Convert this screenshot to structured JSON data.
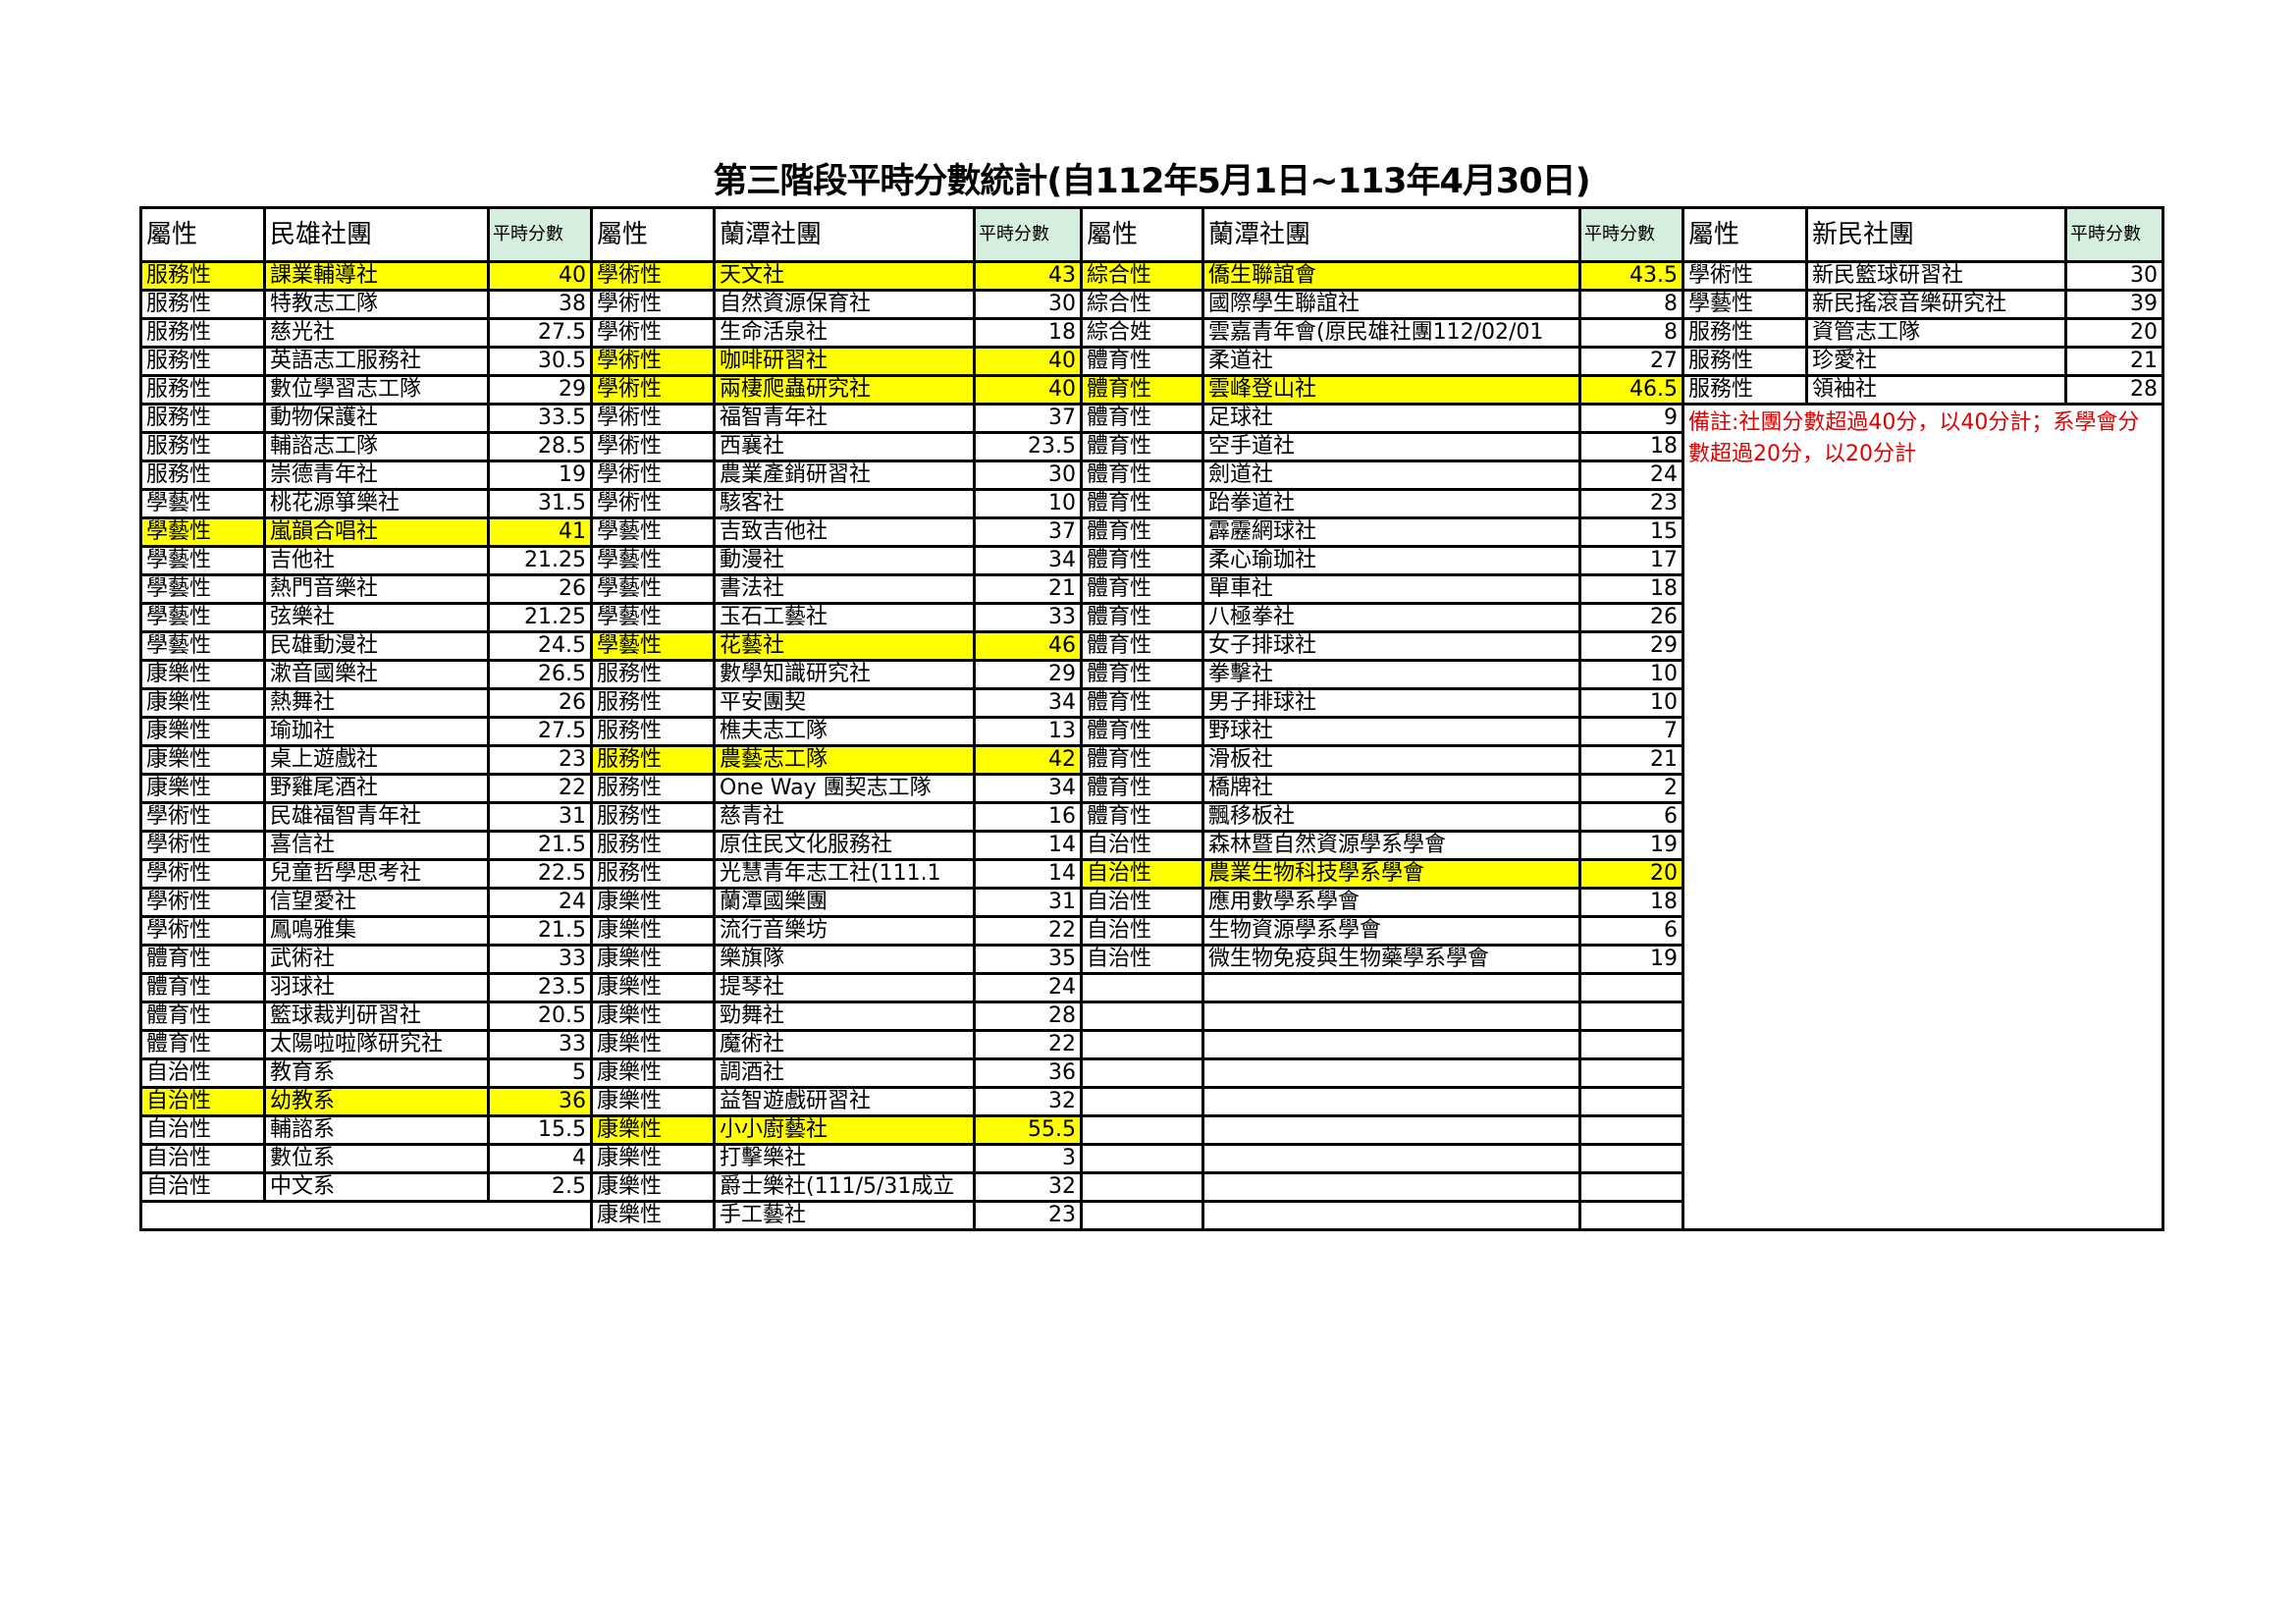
{
  "title": "第三階段平時分數統計(自112年5月1日~113年4月30日)",
  "highlight_color": "#ffff00",
  "score_header_color": "#d5eedd",
  "note_color": "#e00000",
  "note": "備註:社團分數超過40分，以40分計；系學會分數超過20分，以20分計",
  "groups": [
    {
      "header": {
        "attr": "屬性",
        "name": "民雄社團",
        "score": "平時分數"
      },
      "rows": [
        {
          "attr": "服務性",
          "name": "課業輔導社",
          "score": "40",
          "highlight": true
        },
        {
          "attr": "服務性",
          "name": "特教志工隊",
          "score": "38"
        },
        {
          "attr": "服務性",
          "name": "慈光社",
          "score": "27.5"
        },
        {
          "attr": "服務性",
          "name": "英語志工服務社",
          "score": "30.5"
        },
        {
          "attr": "服務性",
          "name": "數位學習志工隊",
          "score": "29"
        },
        {
          "attr": "服務性",
          "name": "動物保護社",
          "score": "33.5"
        },
        {
          "attr": "服務性",
          "name": "輔諮志工隊",
          "score": "28.5"
        },
        {
          "attr": "服務性",
          "name": "崇德青年社",
          "score": "19"
        },
        {
          "attr": "學藝性",
          "name": "桃花源箏樂社",
          "score": "31.5"
        },
        {
          "attr": "學藝性",
          "name": "嵐韻合唱社",
          "score": "41",
          "highlight": true
        },
        {
          "attr": "學藝性",
          "name": "吉他社",
          "score": "21.25"
        },
        {
          "attr": "學藝性",
          "name": "熱門音樂社",
          "score": "26"
        },
        {
          "attr": "學藝性",
          "name": "弦樂社",
          "score": "21.25"
        },
        {
          "attr": "學藝性",
          "name": "民雄動漫社",
          "score": "24.5"
        },
        {
          "attr": "康樂性",
          "name": "漱音國樂社",
          "score": "26.5"
        },
        {
          "attr": "康樂性",
          "name": "熱舞社",
          "score": "26"
        },
        {
          "attr": "康樂性",
          "name": "瑜珈社",
          "score": "27.5"
        },
        {
          "attr": "康樂性",
          "name": "桌上遊戲社",
          "score": "23"
        },
        {
          "attr": "康樂性",
          "name": "野雞尾酒社",
          "score": "22"
        },
        {
          "attr": "學術性",
          "name": "民雄福智青年社",
          "score": "31"
        },
        {
          "attr": "學術性",
          "name": "喜信社",
          "score": "21.5"
        },
        {
          "attr": "學術性",
          "name": "兒童哲學思考社",
          "score": "22.5"
        },
        {
          "attr": "學術性",
          "name": "信望愛社",
          "score": "24"
        },
        {
          "attr": "學術性",
          "name": "鳳鳴雅集",
          "score": "21.5"
        },
        {
          "attr": "體育性",
          "name": "武術社",
          "score": "33"
        },
        {
          "attr": "體育性",
          "name": "羽球社",
          "score": "23.5"
        },
        {
          "attr": "體育性",
          "name": "籃球裁判研習社",
          "score": "20.5"
        },
        {
          "attr": "體育性",
          "name": "太陽啦啦隊研究社",
          "score": "33"
        },
        {
          "attr": "自治性",
          "name": "教育系",
          "score": "5"
        },
        {
          "attr": "自治性",
          "name": "幼教系",
          "score": "36",
          "highlight": true
        },
        {
          "attr": "自治性",
          "name": "輔諮系",
          "score": "15.5"
        },
        {
          "attr": "自治性",
          "name": "數位系",
          "score": "4"
        },
        {
          "attr": "自治性",
          "name": "中文系",
          "score": "2.5"
        }
      ]
    },
    {
      "header": {
        "attr": "屬性",
        "name": "蘭潭社團",
        "score": "平時分數"
      },
      "rows": [
        {
          "attr": "學術性",
          "name": "天文社",
          "score": "43",
          "highlight": true
        },
        {
          "attr": "學術性",
          "name": "自然資源保育社",
          "score": "30"
        },
        {
          "attr": "學術性",
          "name": "生命活泉社",
          "score": "18"
        },
        {
          "attr": "學術性",
          "name": "咖啡研習社",
          "score": "40",
          "highlight": true
        },
        {
          "attr": "學術性",
          "name": "兩棲爬蟲研究社",
          "score": "40",
          "highlight": true
        },
        {
          "attr": "學術性",
          "name": "福智青年社",
          "score": "37"
        },
        {
          "attr": "學術性",
          "name": "西襄社",
          "score": "23.5"
        },
        {
          "attr": "學術性",
          "name": "農業產銷研習社",
          "score": "30"
        },
        {
          "attr": "學術性",
          "name": "駭客社",
          "score": "10"
        },
        {
          "attr": "學藝性",
          "name": "吉致吉他社",
          "score": "37"
        },
        {
          "attr": "學藝性",
          "name": "動漫社",
          "score": "34"
        },
        {
          "attr": "學藝性",
          "name": "書法社",
          "score": "21"
        },
        {
          "attr": "學藝性",
          "name": "玉石工藝社",
          "score": "33"
        },
        {
          "attr": "學藝性",
          "name": "花藝社",
          "score": "46",
          "highlight": true
        },
        {
          "attr": "服務性",
          "name": "數學知識研究社",
          "score": "29"
        },
        {
          "attr": "服務性",
          "name": "平安團契",
          "score": "34"
        },
        {
          "attr": "服務性",
          "name": "樵夫志工隊",
          "score": "13"
        },
        {
          "attr": "服務性",
          "name": "農藝志工隊",
          "score": "42",
          "highlight": true
        },
        {
          "attr": "服務性",
          "name": "One Way 團契志工隊",
          "score": "34"
        },
        {
          "attr": "服務性",
          "name": "慈青社",
          "score": "16"
        },
        {
          "attr": "服務性",
          "name": "原住民文化服務社",
          "score": "14"
        },
        {
          "attr": "服務性",
          "name": "光慧青年志工社(111.1",
          "score": "14"
        },
        {
          "attr": "康樂性",
          "name": "蘭潭國樂團",
          "score": "31"
        },
        {
          "attr": "康樂性",
          "name": "流行音樂坊",
          "score": "22"
        },
        {
          "attr": "康樂性",
          "name": "樂旗隊",
          "score": "35"
        },
        {
          "attr": "康樂性",
          "name": "提琴社",
          "score": "24"
        },
        {
          "attr": "康樂性",
          "name": "勁舞社",
          "score": "28"
        },
        {
          "attr": "康樂性",
          "name": "魔術社",
          "score": "22"
        },
        {
          "attr": "康樂性",
          "name": "調酒社",
          "score": "36"
        },
        {
          "attr": "康樂性",
          "name": "益智遊戲研習社",
          "score": "32"
        },
        {
          "attr": "康樂性",
          "name": "小小廚藝社",
          "score": "55.5",
          "highlight": true
        },
        {
          "attr": "康樂性",
          "name": "打擊樂社",
          "score": "3"
        },
        {
          "attr": "康樂性",
          "name": "爵士樂社(111/5/31成立",
          "score": "32"
        },
        {
          "attr": "康樂性",
          "name": "手工藝社",
          "score": "23"
        }
      ]
    },
    {
      "header": {
        "attr": "屬性",
        "name": "蘭潭社團",
        "score": "平時分數"
      },
      "rows": [
        {
          "attr": "綜合性",
          "name": "僑生聯誼會",
          "score": "43.5",
          "highlight": true
        },
        {
          "attr": "綜合性",
          "name": "國際學生聯誼社",
          "score": "8"
        },
        {
          "attr": "綜合姓",
          "name": "雲嘉青年會(原民雄社團112/02/01",
          "score": "8"
        },
        {
          "attr": "體育性",
          "name": "柔道社",
          "score": "27"
        },
        {
          "attr": "體育性",
          "name": "雲峰登山社",
          "score": "46.5",
          "highlight": true
        },
        {
          "attr": "體育性",
          "name": "足球社",
          "score": "9"
        },
        {
          "attr": "體育性",
          "name": "空手道社",
          "score": "18"
        },
        {
          "attr": "體育性",
          "name": "劍道社",
          "score": "24"
        },
        {
          "attr": "體育性",
          "name": "跆拳道社",
          "score": "23"
        },
        {
          "attr": "體育性",
          "name": "霹靂網球社",
          "score": "15"
        },
        {
          "attr": "體育性",
          "name": "柔心瑜珈社",
          "score": "17"
        },
        {
          "attr": "體育性",
          "name": "單車社",
          "score": "18"
        },
        {
          "attr": "體育性",
          "name": "八極拳社",
          "score": "26"
        },
        {
          "attr": "體育性",
          "name": "女子排球社",
          "score": "29"
        },
        {
          "attr": "體育性",
          "name": "拳擊社",
          "score": "10"
        },
        {
          "attr": "體育性",
          "name": "男子排球社",
          "score": "10"
        },
        {
          "attr": "體育性",
          "name": "野球社",
          "score": "7"
        },
        {
          "attr": "體育性",
          "name": "滑板社",
          "score": "21"
        },
        {
          "attr": "體育性",
          "name": "橋牌社",
          "score": "2"
        },
        {
          "attr": "體育性",
          "name": "飄移板社",
          "score": "6"
        },
        {
          "attr": "自治性",
          "name": "森林暨自然資源學系學會",
          "score": "19"
        },
        {
          "attr": "自治性",
          "name": "農業生物科技學系學會",
          "score": "20",
          "highlight": true
        },
        {
          "attr": "自治性",
          "name": "應用數學系學會",
          "score": "18"
        },
        {
          "attr": "自治性",
          "name": "生物資源學系學會",
          "score": "6"
        },
        {
          "attr": "自治性",
          "name": "微生物免疫與生物藥學系學會",
          "score": "19"
        }
      ]
    },
    {
      "header": {
        "attr": "屬性",
        "name": "新民社團",
        "score": "平時分數"
      },
      "rows": [
        {
          "attr": "學術性",
          "name": "新民籃球研習社",
          "score": "30"
        },
        {
          "attr": "學藝性",
          "name": "新民搖滾音樂研究社",
          "score": "39"
        },
        {
          "attr": "服務性",
          "name": "資管志工隊",
          "score": "20"
        },
        {
          "attr": "服務性",
          "name": "珍愛社",
          "score": "21"
        },
        {
          "attr": "服務性",
          "name": "領袖社",
          "score": "28"
        }
      ]
    }
  ]
}
